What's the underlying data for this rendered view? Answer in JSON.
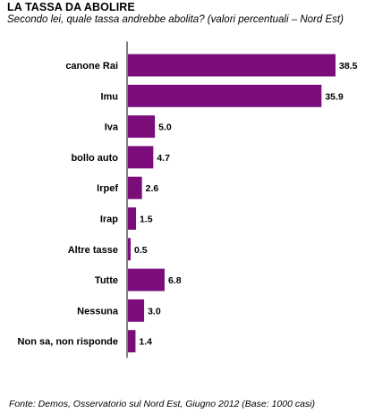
{
  "title": "LA TASSA DA ABOLIRE",
  "subtitle": "Secondo lei, quale tassa andrebbe abolita? (valori percentuali – Nord Est)",
  "footer": "Fonte: Demos, Osservatorio sul Nord Est, Giugno 2012 (Base: 1000 casi)",
  "chart_data": {
    "type": "bar",
    "orientation": "horizontal",
    "categories": [
      "canone Rai",
      "Imu",
      "Iva",
      "bollo auto",
      "Irpef",
      "Irap",
      "Altre tasse",
      "Tutte",
      "Nessuna",
      "Non sa, non risponde"
    ],
    "values": [
      38.5,
      35.9,
      5.0,
      4.7,
      2.6,
      1.5,
      0.5,
      6.8,
      3.0,
      1.4
    ],
    "value_labels": [
      "38.5",
      "35.9",
      "5.0",
      "4.7",
      "2.6",
      "1.5",
      "0.5",
      "6.8",
      "3.0",
      "1.4"
    ],
    "bar_color": "#7b0d7b",
    "xlim": [
      0,
      38.5
    ],
    "grid": false,
    "legend": "none"
  }
}
